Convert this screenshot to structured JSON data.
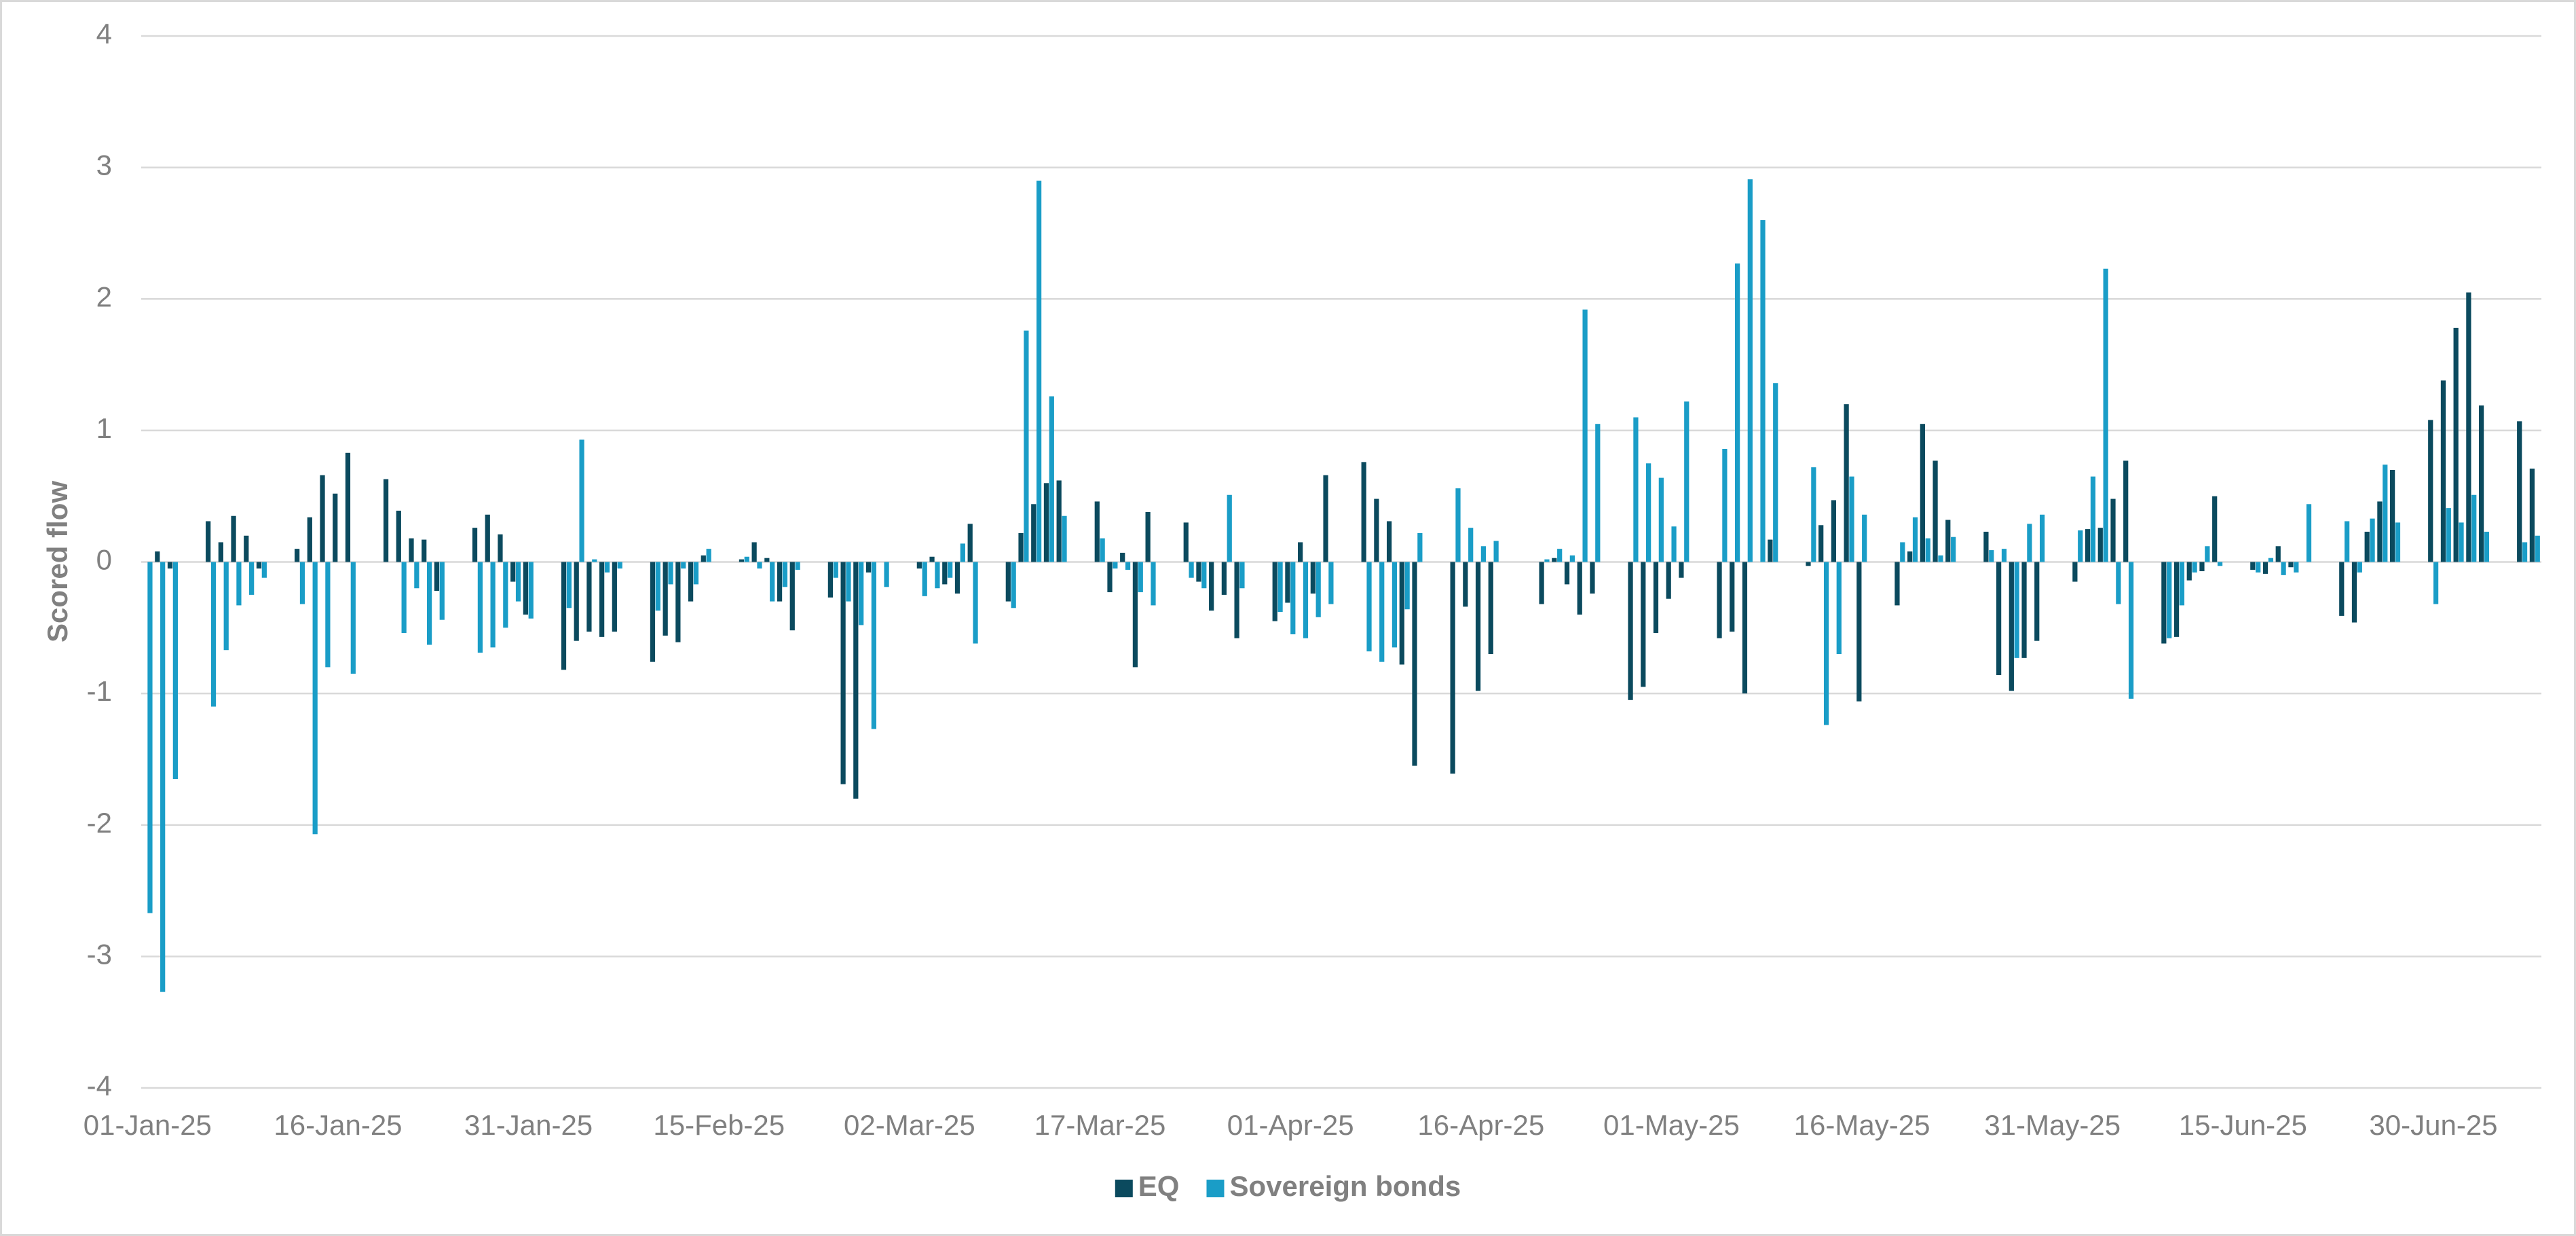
{
  "chart_data": {
    "type": "bar",
    "y_label": "Scored flow",
    "ylim": [
      -4,
      4
    ],
    "yticks": [
      -4,
      -3,
      -2,
      -1,
      0,
      1,
      2,
      3,
      4
    ],
    "grid": true,
    "legend": "bottom",
    "categories": [
      "01-Jan-25",
      null,
      null,
      null,
      null,
      null,
      null,
      null,
      null,
      null,
      null,
      null,
      null,
      null,
      null,
      "16-Jan-25",
      null,
      null,
      null,
      null,
      null,
      null,
      null,
      null,
      null,
      null,
      null,
      null,
      null,
      null,
      "31-Jan-25",
      null,
      null,
      null,
      null,
      null,
      null,
      null,
      null,
      null,
      null,
      null,
      null,
      null,
      null,
      "15-Feb-25",
      null,
      null,
      null,
      null,
      null,
      null,
      null,
      null,
      null,
      null,
      null,
      null,
      null,
      null,
      "02-Mar-25",
      null,
      null,
      null,
      null,
      null,
      null,
      null,
      null,
      null,
      null,
      null,
      null,
      null,
      null,
      "17-Mar-25",
      null,
      null,
      null,
      null,
      null,
      null,
      null,
      null,
      null,
      null,
      null,
      null,
      null,
      null,
      "01-Apr-25",
      null,
      null,
      null,
      null,
      null,
      null,
      null,
      null,
      null,
      null,
      null,
      null,
      null,
      null,
      "16-Apr-25",
      null,
      null,
      null,
      null,
      null,
      null,
      null,
      null,
      null,
      null,
      null,
      null,
      null,
      null,
      "01-May-25",
      null,
      null,
      null,
      null,
      null,
      null,
      null,
      null,
      null,
      null,
      null,
      null,
      null,
      null,
      "16-May-25",
      null,
      null,
      null,
      null,
      null,
      null,
      null,
      null,
      null,
      null,
      null,
      null,
      null,
      null,
      "31-May-25",
      null,
      null,
      null,
      null,
      null,
      null,
      null,
      null,
      null,
      null,
      null,
      null,
      null,
      null,
      "15-Jun-25",
      null,
      null,
      null,
      null,
      null,
      null,
      null,
      null,
      null,
      null,
      null,
      null,
      null,
      null,
      "30-Jun-25",
      null,
      null,
      null,
      null,
      null,
      null,
      null,
      null
    ],
    "series": [
      {
        "name": "EQ",
        "color": "#0b4a5e",
        "values": [
          0,
          0.08,
          -0.05,
          null,
          null,
          0.31,
          0.15,
          0.35,
          0.2,
          -0.05,
          null,
          null,
          0.1,
          0.34,
          0.66,
          0.52,
          0.83,
          null,
          null,
          0.63,
          0.39,
          0.18,
          0.17,
          -0.22,
          null,
          null,
          0.26,
          0.36,
          0.21,
          -0.15,
          -0.4,
          null,
          null,
          -0.82,
          -0.6,
          -0.53,
          -0.57,
          -0.53,
          null,
          null,
          -0.76,
          -0.56,
          -0.61,
          -0.3,
          0.05,
          null,
          null,
          0.02,
          0.15,
          0.03,
          -0.3,
          -0.52,
          null,
          null,
          -0.27,
          -1.69,
          -1.8,
          -0.08,
          0,
          null,
          null,
          -0.05,
          0.04,
          -0.17,
          -0.24,
          0.29,
          null,
          null,
          -0.3,
          0.22,
          0.44,
          0.6,
          0.62,
          null,
          null,
          0.46,
          -0.23,
          0.07,
          -0.8,
          0.38,
          null,
          null,
          0.3,
          -0.15,
          -0.37,
          -0.25,
          -0.58,
          null,
          null,
          -0.45,
          -0.31,
          0.15,
          -0.24,
          0.66,
          null,
          null,
          0.76,
          0.48,
          0.31,
          -0.78,
          -1.55,
          null,
          null,
          -1.61,
          -0.34,
          -0.98,
          -0.7,
          null,
          null,
          null,
          -0.32,
          0.03,
          -0.17,
          -0.4,
          -0.24,
          null,
          null,
          -1.05,
          -0.95,
          -0.54,
          -0.28,
          -0.12,
          null,
          null,
          -0.58,
          -0.53,
          -1.0,
          0,
          0.17,
          null,
          null,
          -0.03,
          0.28,
          0.47,
          1.2,
          -1.06,
          null,
          null,
          -0.33,
          0.08,
          1.05,
          0.77,
          0.32,
          null,
          null,
          0.23,
          -0.86,
          -0.98,
          -0.73,
          -0.6,
          null,
          null,
          -0.15,
          0.25,
          0.26,
          0.48,
          0.77,
          null,
          null,
          -0.62,
          -0.57,
          -0.14,
          -0.07,
          0.5,
          null,
          null,
          -0.06,
          -0.09,
          0.12,
          -0.04,
          0,
          null,
          null,
          -0.41,
          -0.46,
          0.23,
          0.46,
          0.7,
          null,
          null,
          1.08,
          1.38,
          1.78,
          2.05,
          1.19,
          null,
          null,
          1.07,
          0.71
        ]
      },
      {
        "name": "Sovereign bonds",
        "color": "#1a9dc7",
        "values": [
          -2.67,
          -3.27,
          -1.65,
          null,
          null,
          -1.1,
          -0.67,
          -0.33,
          -0.25,
          -0.12,
          null,
          null,
          -0.32,
          -2.07,
          -0.8,
          0,
          -0.85,
          null,
          null,
          0,
          -0.54,
          -0.2,
          -0.63,
          -0.44,
          null,
          null,
          -0.69,
          -0.65,
          -0.5,
          -0.3,
          -0.43,
          null,
          null,
          -0.35,
          0.93,
          0.02,
          -0.08,
          -0.05,
          null,
          null,
          -0.37,
          -0.17,
          -0.05,
          -0.17,
          0.1,
          null,
          null,
          0.04,
          -0.05,
          -0.3,
          -0.19,
          -0.06,
          null,
          null,
          -0.12,
          -0.3,
          -0.48,
          -1.27,
          -0.19,
          null,
          null,
          -0.26,
          -0.2,
          -0.12,
          0.14,
          -0.62,
          null,
          null,
          -0.35,
          1.76,
          2.9,
          1.26,
          0.35,
          null,
          null,
          0.18,
          -0.05,
          -0.06,
          -0.23,
          -0.33,
          null,
          null,
          -0.12,
          -0.2,
          0,
          0.51,
          -0.2,
          null,
          null,
          -0.38,
          -0.55,
          -0.58,
          -0.42,
          -0.32,
          null,
          null,
          -0.68,
          -0.76,
          -0.65,
          -0.36,
          0.22,
          null,
          null,
          0.56,
          0.26,
          0.12,
          0.16,
          null,
          null,
          null,
          0.02,
          0.1,
          0.05,
          1.92,
          1.05,
          null,
          null,
          1.1,
          0.75,
          0.64,
          0.27,
          1.22,
          null,
          null,
          0.86,
          2.27,
          2.91,
          2.6,
          1.36,
          null,
          null,
          0.72,
          -1.24,
          -0.7,
          0.65,
          0.36,
          null,
          null,
          0.15,
          0.34,
          0.18,
          0.05,
          0.19,
          null,
          null,
          0.09,
          0.1,
          -0.73,
          0.29,
          0.36,
          null,
          null,
          0.24,
          0.65,
          2.23,
          -0.32,
          -1.04,
          null,
          null,
          -0.58,
          -0.33,
          -0.08,
          0.12,
          -0.03,
          null,
          null,
          -0.08,
          0.03,
          -0.1,
          -0.08,
          0.44,
          null,
          null,
          0.31,
          -0.08,
          0.33,
          0.74,
          0.3,
          null,
          null,
          -0.32,
          0.41,
          0.3,
          0.51,
          0.23,
          null,
          null,
          0.15,
          0.2
        ]
      }
    ]
  }
}
